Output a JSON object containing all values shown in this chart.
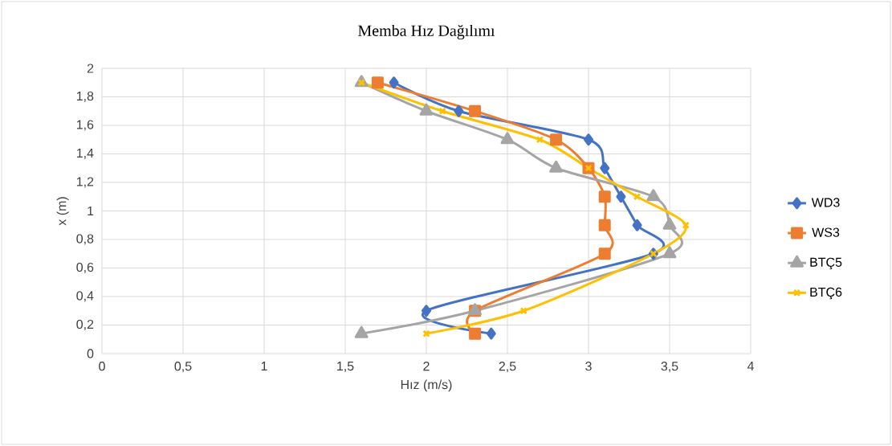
{
  "chart_data": {
    "type": "line",
    "title": "Memba Hız Dağılımı",
    "xlabel": "Hız (m/s)",
    "ylabel": "x (m)",
    "series": [
      {
        "name": "WD3",
        "color": "#4472c4",
        "marker": "diamond",
        "x": [
          1.8,
          2.2,
          3.0,
          3.1,
          3.2,
          3.3,
          3.4,
          2.0,
          2.4
        ],
        "values": [
          1.9,
          1.7,
          1.5,
          1.3,
          1.1,
          0.9,
          0.7,
          0.3,
          0.14
        ]
      },
      {
        "name": "WS3",
        "color": "#ed7d31",
        "marker": "square",
        "x": [
          1.7,
          2.3,
          2.8,
          3.0,
          3.1,
          3.1,
          3.1,
          2.3,
          2.3
        ],
        "values": [
          1.9,
          1.7,
          1.5,
          1.3,
          1.1,
          0.9,
          0.7,
          0.3,
          0.14
        ]
      },
      {
        "name": "BTÇ5",
        "color": "#a5a5a5",
        "marker": "triangle",
        "x": [
          1.6,
          2.0,
          2.5,
          2.8,
          3.4,
          3.5,
          3.5,
          2.3,
          1.6
        ],
        "values": [
          1.9,
          1.7,
          1.5,
          1.3,
          1.1,
          0.9,
          0.7,
          0.3,
          0.14
        ]
      },
      {
        "name": "BTÇ6",
        "color": "#ffc000",
        "marker": "cross",
        "x": [
          1.6,
          2.1,
          2.7,
          3.0,
          3.3,
          3.6,
          3.4,
          2.6,
          2.0
        ],
        "values": [
          1.9,
          1.7,
          1.5,
          1.3,
          1.1,
          0.9,
          0.7,
          0.3,
          0.14
        ]
      }
    ],
    "xlim": [
      0,
      4
    ],
    "xticks": [
      0,
      {
        "value": 0.5,
        "label": "0,5"
      },
      1,
      {
        "value": 1.5,
        "label": "1,5"
      },
      2,
      {
        "value": 2.5,
        "label": "2,5"
      },
      3,
      {
        "value": 3.5,
        "label": "3,5"
      },
      4
    ],
    "ylim": [
      0,
      2
    ],
    "yticks": [
      0,
      {
        "value": 0.2,
        "label": "0,2"
      },
      {
        "value": 0.4,
        "label": "0,4"
      },
      {
        "value": 0.6,
        "label": "0,6"
      },
      {
        "value": 0.8,
        "label": "0,8"
      },
      1,
      {
        "value": 1.2,
        "label": "1,2"
      },
      {
        "value": 1.4,
        "label": "1,4"
      },
      {
        "value": 1.6,
        "label": "1,6"
      },
      {
        "value": 1.8,
        "label": "1,8"
      },
      2
    ],
    "grid": true,
    "legend": "right"
  }
}
